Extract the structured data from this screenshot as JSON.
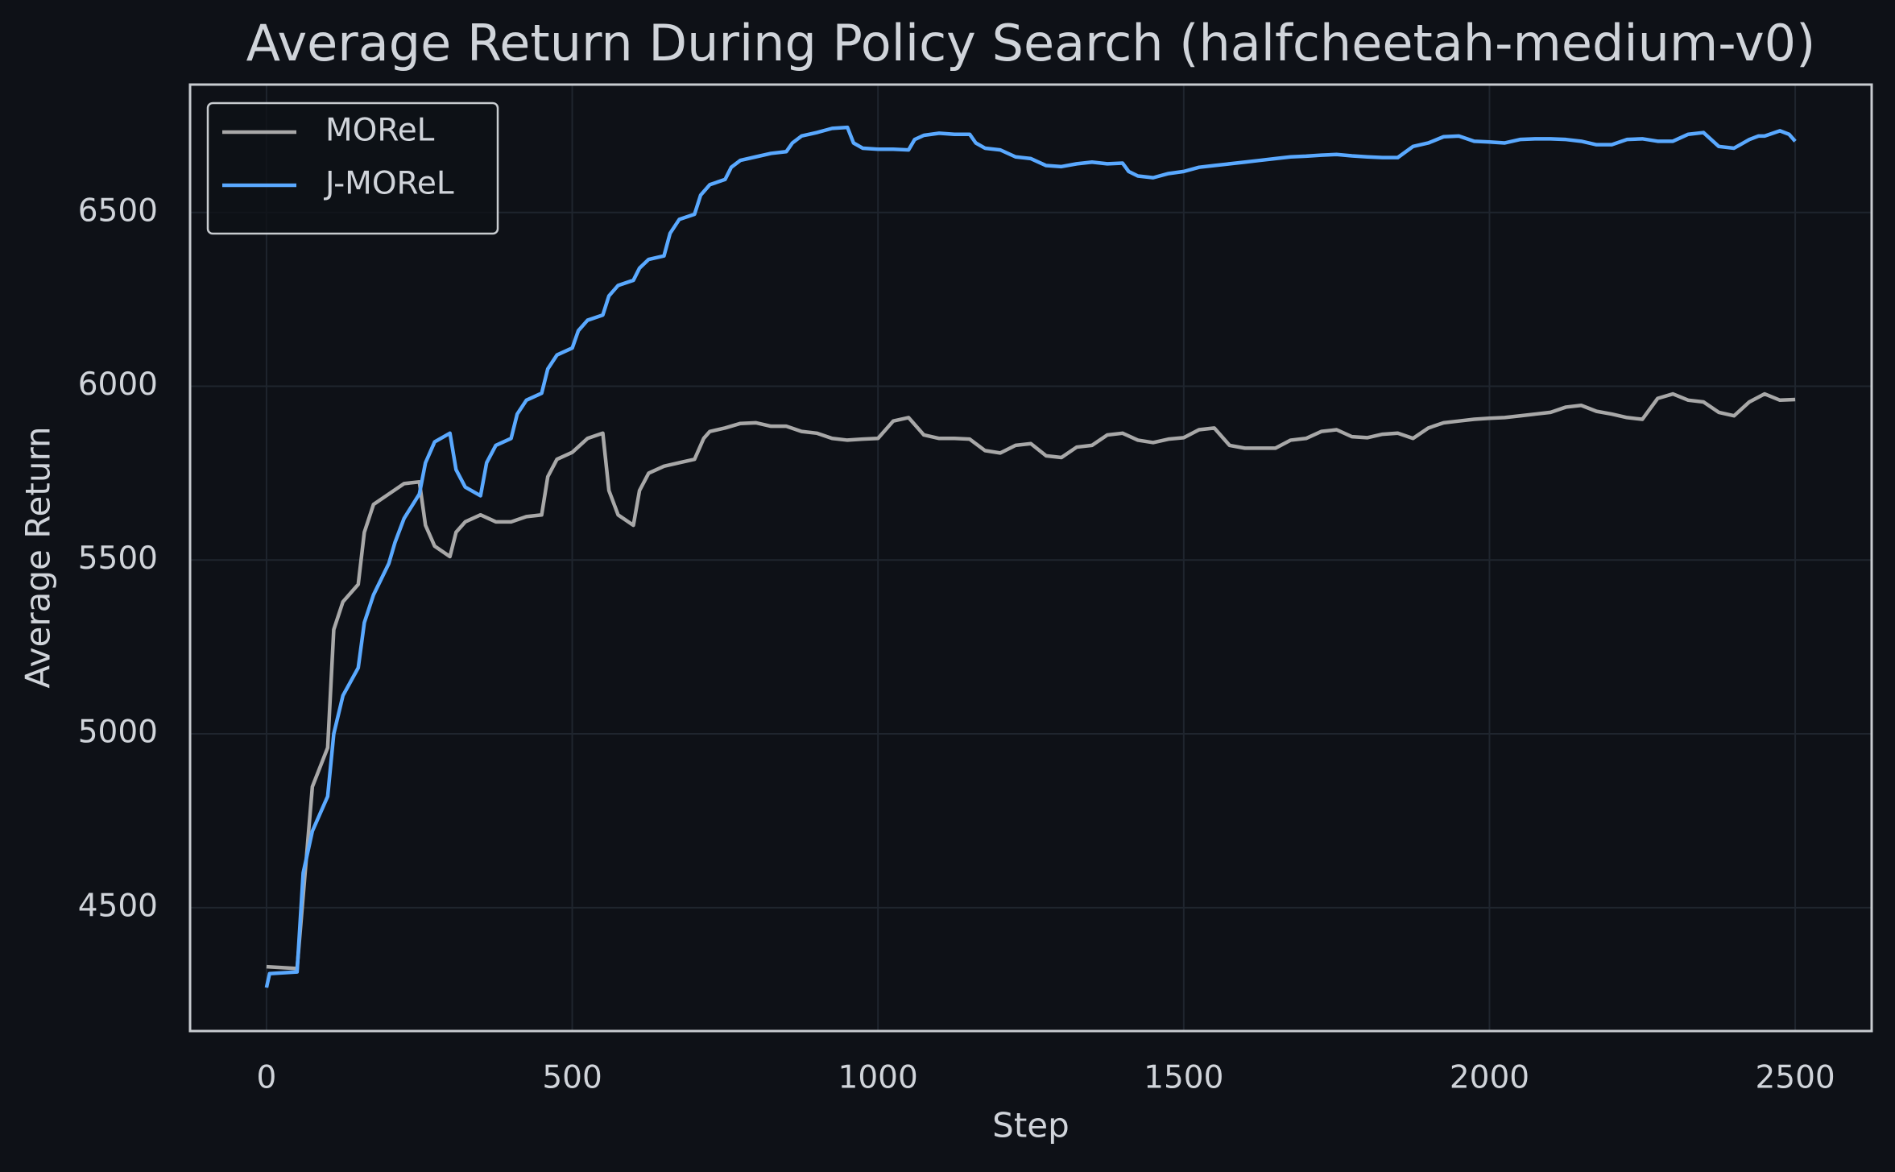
{
  "chart_data": {
    "type": "line",
    "title": "Average Return During Policy Search (halfcheetah-medium-v0)",
    "xlabel": "Step",
    "ylabel": "Average Return",
    "xlim": [
      -125,
      2625
    ],
    "xticks": [
      0,
      500,
      1000,
      1500,
      2000,
      2500
    ],
    "ylim": [
      4145,
      6868
    ],
    "yticks": [
      4500,
      5000,
      5500,
      6000,
      6500
    ],
    "grid": true,
    "legend": "upper left",
    "series": [
      {
        "name": "MOReL",
        "color": "#a8a8a8",
        "x": [
          0,
          50,
          75,
          100,
          110,
          125,
          150,
          160,
          175,
          200,
          225,
          250,
          260,
          275,
          300,
          310,
          325,
          350,
          375,
          400,
          425,
          450,
          460,
          475,
          500,
          525,
          550,
          560,
          575,
          600,
          610,
          625,
          650,
          675,
          700,
          715,
          725,
          750,
          775,
          800,
          825,
          850,
          875,
          900,
          925,
          950,
          975,
          1000,
          1025,
          1050,
          1075,
          1100,
          1125,
          1150,
          1175,
          1200,
          1225,
          1250,
          1275,
          1300,
          1325,
          1350,
          1375,
          1400,
          1425,
          1450,
          1475,
          1500,
          1525,
          1550,
          1575,
          1600,
          1625,
          1650,
          1675,
          1700,
          1725,
          1750,
          1775,
          1800,
          1825,
          1850,
          1875,
          1900,
          1925,
          1950,
          1975,
          2000,
          2025,
          2050,
          2075,
          2100,
          2125,
          2150,
          2175,
          2200,
          2225,
          2250,
          2275,
          2300,
          2325,
          2350,
          2375,
          2400,
          2425,
          2450,
          2475,
          2500
        ],
        "values": [
          4330,
          4325,
          4848,
          4960,
          5300,
          5380,
          5430,
          5580,
          5660,
          5690,
          5720,
          5725,
          5600,
          5540,
          5510,
          5580,
          5610,
          5630,
          5610,
          5610,
          5625,
          5630,
          5740,
          5790,
          5810,
          5850,
          5865,
          5700,
          5630,
          5600,
          5700,
          5750,
          5770,
          5780,
          5790,
          5850,
          5870,
          5880,
          5893,
          5895,
          5885,
          5885,
          5870,
          5865,
          5850,
          5845,
          5848,
          5850,
          5900,
          5910,
          5860,
          5850,
          5850,
          5848,
          5815,
          5808,
          5830,
          5835,
          5800,
          5795,
          5825,
          5830,
          5860,
          5865,
          5845,
          5838,
          5848,
          5852,
          5875,
          5880,
          5830,
          5822,
          5822,
          5822,
          5845,
          5850,
          5870,
          5875,
          5855,
          5852,
          5862,
          5865,
          5850,
          5880,
          5895,
          5900,
          5905,
          5908,
          5910,
          5915,
          5920,
          5925,
          5940,
          5945,
          5928,
          5920,
          5910,
          5905,
          5965,
          5978,
          5960,
          5955,
          5925,
          5915,
          5955,
          5978,
          5960,
          5962
        ]
      },
      {
        "name": "J-MOReL",
        "color": "#5aa9ff",
        "x": [
          0,
          5,
          50,
          60,
          75,
          100,
          110,
          125,
          150,
          160,
          175,
          200,
          210,
          225,
          250,
          260,
          275,
          300,
          310,
          325,
          350,
          360,
          375,
          400,
          410,
          425,
          450,
          460,
          475,
          500,
          510,
          525,
          550,
          560,
          575,
          600,
          610,
          625,
          650,
          660,
          675,
          700,
          710,
          725,
          750,
          760,
          775,
          800,
          825,
          850,
          860,
          875,
          900,
          925,
          950,
          960,
          975,
          1000,
          1025,
          1050,
          1060,
          1075,
          1100,
          1125,
          1150,
          1160,
          1175,
          1200,
          1225,
          1250,
          1275,
          1300,
          1325,
          1350,
          1375,
          1400,
          1410,
          1425,
          1450,
          1475,
          1500,
          1525,
          1550,
          1575,
          1600,
          1625,
          1650,
          1675,
          1700,
          1725,
          1750,
          1775,
          1800,
          1825,
          1850,
          1875,
          1900,
          1925,
          1950,
          1975,
          2000,
          2025,
          2050,
          2075,
          2100,
          2125,
          2150,
          2175,
          2200,
          2225,
          2250,
          2275,
          2300,
          2325,
          2350,
          2375,
          2400,
          2425,
          2440,
          2450,
          2475,
          2490,
          2500
        ],
        "values": [
          4270,
          4310,
          4315,
          4600,
          4720,
          4820,
          5000,
          5110,
          5190,
          5320,
          5400,
          5490,
          5550,
          5620,
          5690,
          5780,
          5840,
          5865,
          5760,
          5710,
          5685,
          5780,
          5830,
          5850,
          5920,
          5960,
          5980,
          6050,
          6090,
          6110,
          6160,
          6190,
          6205,
          6260,
          6290,
          6305,
          6340,
          6365,
          6375,
          6440,
          6480,
          6495,
          6550,
          6580,
          6595,
          6630,
          6650,
          6660,
          6670,
          6675,
          6700,
          6720,
          6730,
          6742,
          6745,
          6700,
          6685,
          6682,
          6682,
          6680,
          6710,
          6722,
          6728,
          6725,
          6725,
          6700,
          6685,
          6680,
          6660,
          6655,
          6635,
          6632,
          6640,
          6645,
          6640,
          6642,
          6618,
          6605,
          6600,
          6612,
          6618,
          6630,
          6635,
          6640,
          6645,
          6650,
          6655,
          6660,
          6662,
          6665,
          6667,
          6663,
          6660,
          6658,
          6658,
          6690,
          6700,
          6718,
          6720,
          6705,
          6703,
          6700,
          6710,
          6712,
          6712,
          6710,
          6705,
          6695,
          6695,
          6710,
          6712,
          6705,
          6705,
          6725,
          6730,
          6690,
          6685,
          6710,
          6720,
          6720,
          6735,
          6725,
          6705
        ]
      }
    ]
  }
}
